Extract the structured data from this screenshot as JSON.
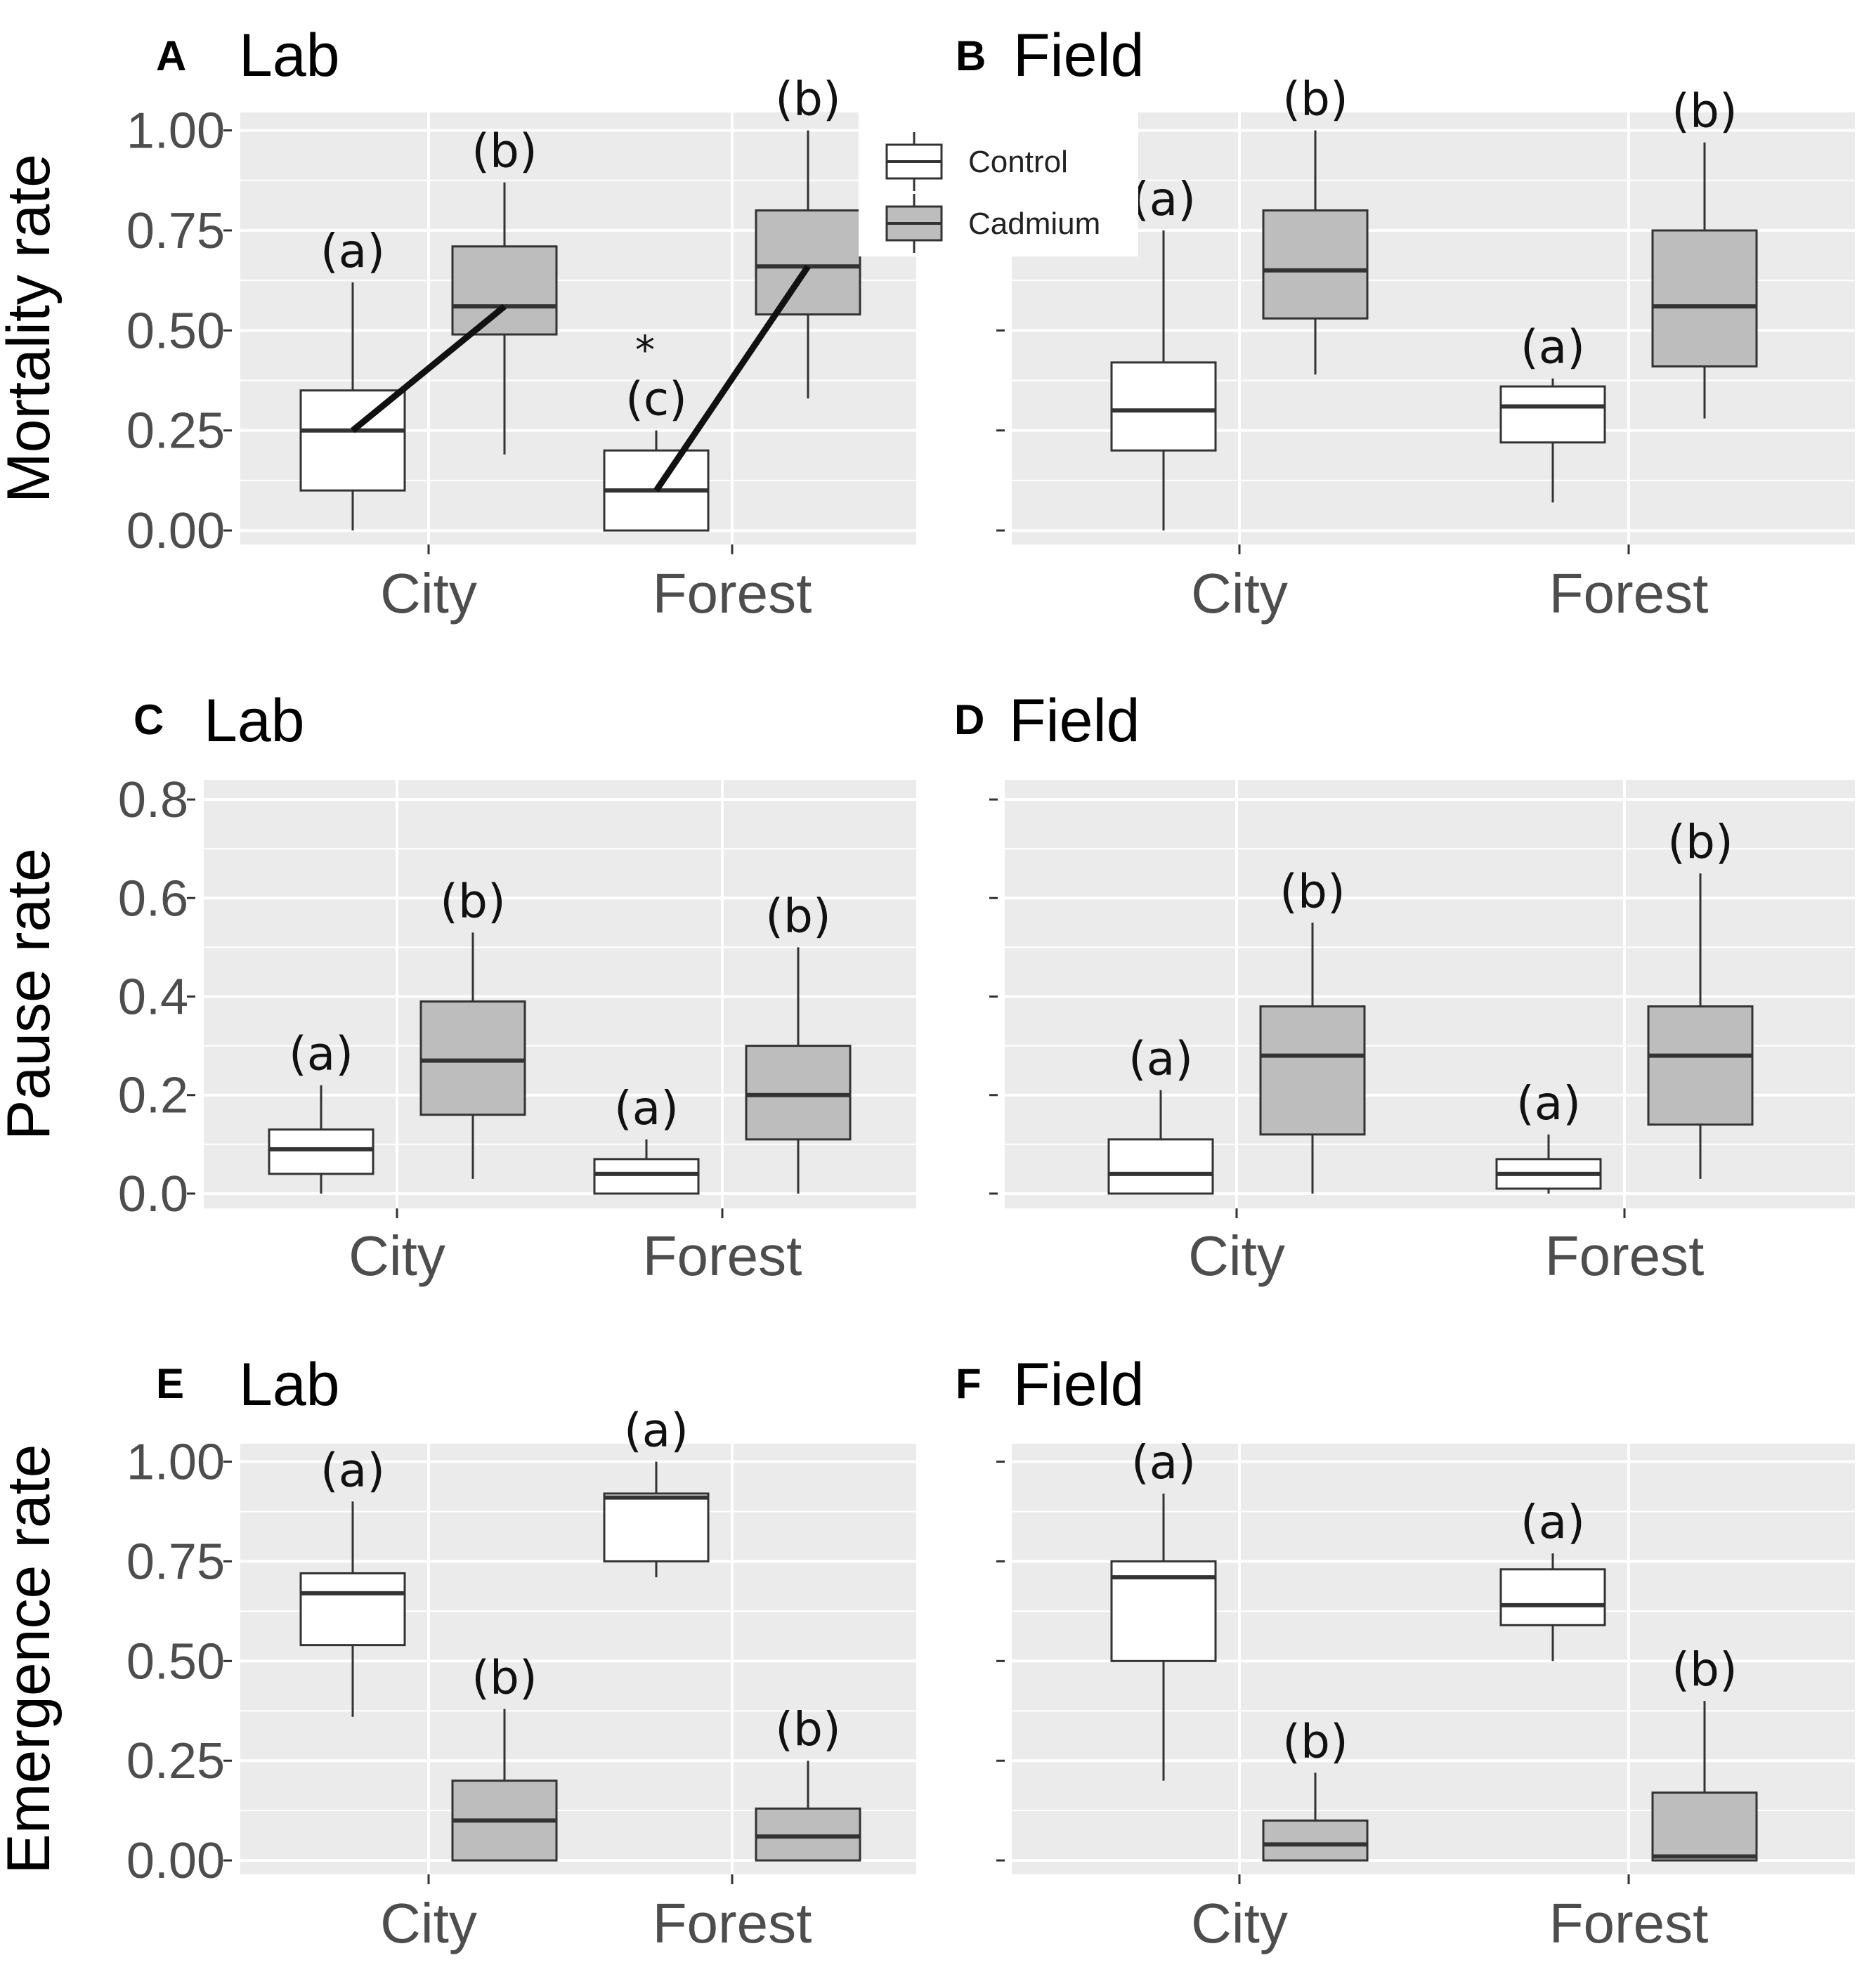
{
  "colors": {
    "control": "#ffffff",
    "cadmium": "#bdbdbd",
    "panel_background": "#ebebeb",
    "grid": "#ffffff",
    "box_outline": "#333333",
    "median": "#333333",
    "trend_line": "#111111"
  },
  "legend": {
    "entries": [
      "Control",
      "Cadmium"
    ],
    "placement": "top, between panels A and B"
  },
  "chart_data": [
    {
      "id": "A",
      "letter": "A",
      "title": "Lab",
      "type": "boxplot",
      "ylabel": "Mortality rate",
      "show_tick_labels": true,
      "ylim": [
        -0.035,
        1.045
      ],
      "yticks": [
        0,
        0.25,
        0.5,
        0.75,
        1.0
      ],
      "ytick_labels": [
        "0.00",
        "0.25",
        "0.50",
        "0.75",
        "1.00"
      ],
      "categories": [
        "City",
        "Forest"
      ],
      "series": [
        {
          "name": "Control",
          "boxes": [
            {
              "category": "City",
              "min": 0.0,
              "q1": 0.1,
              "median": 0.25,
              "q3": 0.35,
              "max": 0.62,
              "label": "(a)"
            },
            {
              "category": "Forest",
              "min": 0.0,
              "q1": 0.0,
              "median": 0.1,
              "q3": 0.2,
              "max": 0.25,
              "label": "(c)"
            }
          ]
        },
        {
          "name": "Cadmium",
          "boxes": [
            {
              "category": "City",
              "min": 0.19,
              "q1": 0.49,
              "median": 0.56,
              "q3": 0.71,
              "max": 0.87,
              "label": "(b)"
            },
            {
              "category": "Forest",
              "min": 0.33,
              "q1": 0.54,
              "median": 0.66,
              "q3": 0.8,
              "max": 1.0,
              "label": "(b)"
            }
          ]
        }
      ],
      "reaction_lines": true,
      "annotation": "*"
    },
    {
      "id": "B",
      "letter": "B",
      "title": "Field",
      "type": "boxplot",
      "ylabel": "",
      "show_tick_labels": false,
      "ylim": [
        -0.035,
        1.045
      ],
      "yticks": [
        0,
        0.25,
        0.5,
        0.75,
        1.0
      ],
      "categories": [
        "City",
        "Forest"
      ],
      "series": [
        {
          "name": "Control",
          "boxes": [
            {
              "category": "City",
              "min": 0.0,
              "q1": 0.2,
              "median": 0.3,
              "q3": 0.42,
              "max": 0.75,
              "label": "(a)"
            },
            {
              "category": "Forest",
              "min": 0.07,
              "q1": 0.22,
              "median": 0.31,
              "q3": 0.36,
              "max": 0.38,
              "label": "(a)"
            }
          ]
        },
        {
          "name": "Cadmium",
          "boxes": [
            {
              "category": "City",
              "min": 0.39,
              "q1": 0.53,
              "median": 0.65,
              "q3": 0.8,
              "max": 1.0,
              "label": "(b)"
            },
            {
              "category": "Forest",
              "min": 0.28,
              "q1": 0.41,
              "median": 0.56,
              "q3": 0.75,
              "max": 0.97,
              "label": "(b)"
            }
          ]
        }
      ]
    },
    {
      "id": "C",
      "letter": "C",
      "title": "Lab",
      "type": "boxplot",
      "ylabel": "Pause rate",
      "show_tick_labels": true,
      "ylim": [
        -0.03,
        0.84
      ],
      "yticks": [
        0,
        0.2,
        0.4,
        0.6,
        0.8
      ],
      "ytick_labels": [
        "0.0",
        "0.2",
        "0.4",
        "0.6",
        "0.8"
      ],
      "categories": [
        "City",
        "Forest"
      ],
      "series": [
        {
          "name": "Control",
          "boxes": [
            {
              "category": "City",
              "min": 0.0,
              "q1": 0.04,
              "median": 0.09,
              "q3": 0.13,
              "max": 0.22,
              "label": "(a)"
            },
            {
              "category": "Forest",
              "min": 0.0,
              "q1": 0.0,
              "median": 0.04,
              "q3": 0.07,
              "max": 0.11,
              "label": "(a)"
            }
          ]
        },
        {
          "name": "Cadmium",
          "boxes": [
            {
              "category": "City",
              "min": 0.03,
              "q1": 0.16,
              "median": 0.27,
              "q3": 0.39,
              "max": 0.53,
              "label": "(b)"
            },
            {
              "category": "Forest",
              "min": 0.0,
              "q1": 0.11,
              "median": 0.2,
              "q3": 0.3,
              "max": 0.5,
              "label": "(b)"
            }
          ]
        }
      ]
    },
    {
      "id": "D",
      "letter": "D",
      "title": "Field",
      "type": "boxplot",
      "ylabel": "",
      "show_tick_labels": false,
      "ylim": [
        -0.03,
        0.84
      ],
      "yticks": [
        0,
        0.2,
        0.4,
        0.6,
        0.8
      ],
      "categories": [
        "City",
        "Forest"
      ],
      "series": [
        {
          "name": "Control",
          "boxes": [
            {
              "category": "City",
              "min": 0.0,
              "q1": 0.0,
              "median": 0.04,
              "q3": 0.11,
              "max": 0.21,
              "label": "(a)"
            },
            {
              "category": "Forest",
              "min": 0.0,
              "q1": 0.01,
              "median": 0.04,
              "q3": 0.07,
              "max": 0.12,
              "label": "(a)"
            }
          ]
        },
        {
          "name": "Cadmium",
          "boxes": [
            {
              "category": "City",
              "min": 0.0,
              "q1": 0.12,
              "median": 0.28,
              "q3": 0.38,
              "max": 0.55,
              "label": "(b)"
            },
            {
              "category": "Forest",
              "min": 0.03,
              "q1": 0.14,
              "median": 0.28,
              "q3": 0.38,
              "max": 0.65,
              "label": "(b)"
            }
          ]
        }
      ]
    },
    {
      "id": "E",
      "letter": "E",
      "title": "Lab",
      "type": "boxplot",
      "ylabel": "Emergence rate",
      "show_tick_labels": true,
      "ylim": [
        -0.035,
        1.045
      ],
      "yticks": [
        0,
        0.25,
        0.5,
        0.75,
        1.0
      ],
      "ytick_labels": [
        "0.00",
        "0.25",
        "0.50",
        "0.75",
        "1.00"
      ],
      "categories": [
        "City",
        "Forest"
      ],
      "series": [
        {
          "name": "Control",
          "boxes": [
            {
              "category": "City",
              "min": 0.36,
              "q1": 0.54,
              "median": 0.67,
              "q3": 0.72,
              "max": 0.9,
              "label": "(a)"
            },
            {
              "category": "Forest",
              "min": 0.71,
              "q1": 0.75,
              "median": 0.91,
              "q3": 0.92,
              "max": 1.0,
              "label": "(a)"
            }
          ]
        },
        {
          "name": "Cadmium",
          "boxes": [
            {
              "category": "City",
              "min": 0.0,
              "q1": 0.0,
              "median": 0.1,
              "q3": 0.2,
              "max": 0.38,
              "label": "(b)"
            },
            {
              "category": "Forest",
              "min": 0.0,
              "q1": 0.0,
              "median": 0.06,
              "q3": 0.13,
              "max": 0.25,
              "label": "(b)"
            }
          ]
        }
      ]
    },
    {
      "id": "F",
      "letter": "F",
      "title": "Field",
      "type": "boxplot",
      "ylabel": "",
      "show_tick_labels": false,
      "ylim": [
        -0.035,
        1.045
      ],
      "yticks": [
        0,
        0.25,
        0.5,
        0.75,
        1.0
      ],
      "categories": [
        "City",
        "Forest"
      ],
      "series": [
        {
          "name": "Control",
          "boxes": [
            {
              "category": "City",
              "min": 0.2,
              "q1": 0.5,
              "median": 0.71,
              "q3": 0.75,
              "max": 0.92,
              "label": "(a)"
            },
            {
              "category": "Forest",
              "min": 0.5,
              "q1": 0.59,
              "median": 0.64,
              "q3": 0.73,
              "max": 0.77,
              "label": "(a)"
            }
          ]
        },
        {
          "name": "Cadmium",
          "boxes": [
            {
              "category": "City",
              "min": 0.0,
              "q1": 0.0,
              "median": 0.04,
              "q3": 0.1,
              "max": 0.22,
              "label": "(b)"
            },
            {
              "category": "Forest",
              "min": 0.0,
              "q1": 0.0,
              "median": 0.01,
              "q3": 0.17,
              "max": 0.4,
              "label": "(b)"
            }
          ]
        }
      ]
    }
  ]
}
